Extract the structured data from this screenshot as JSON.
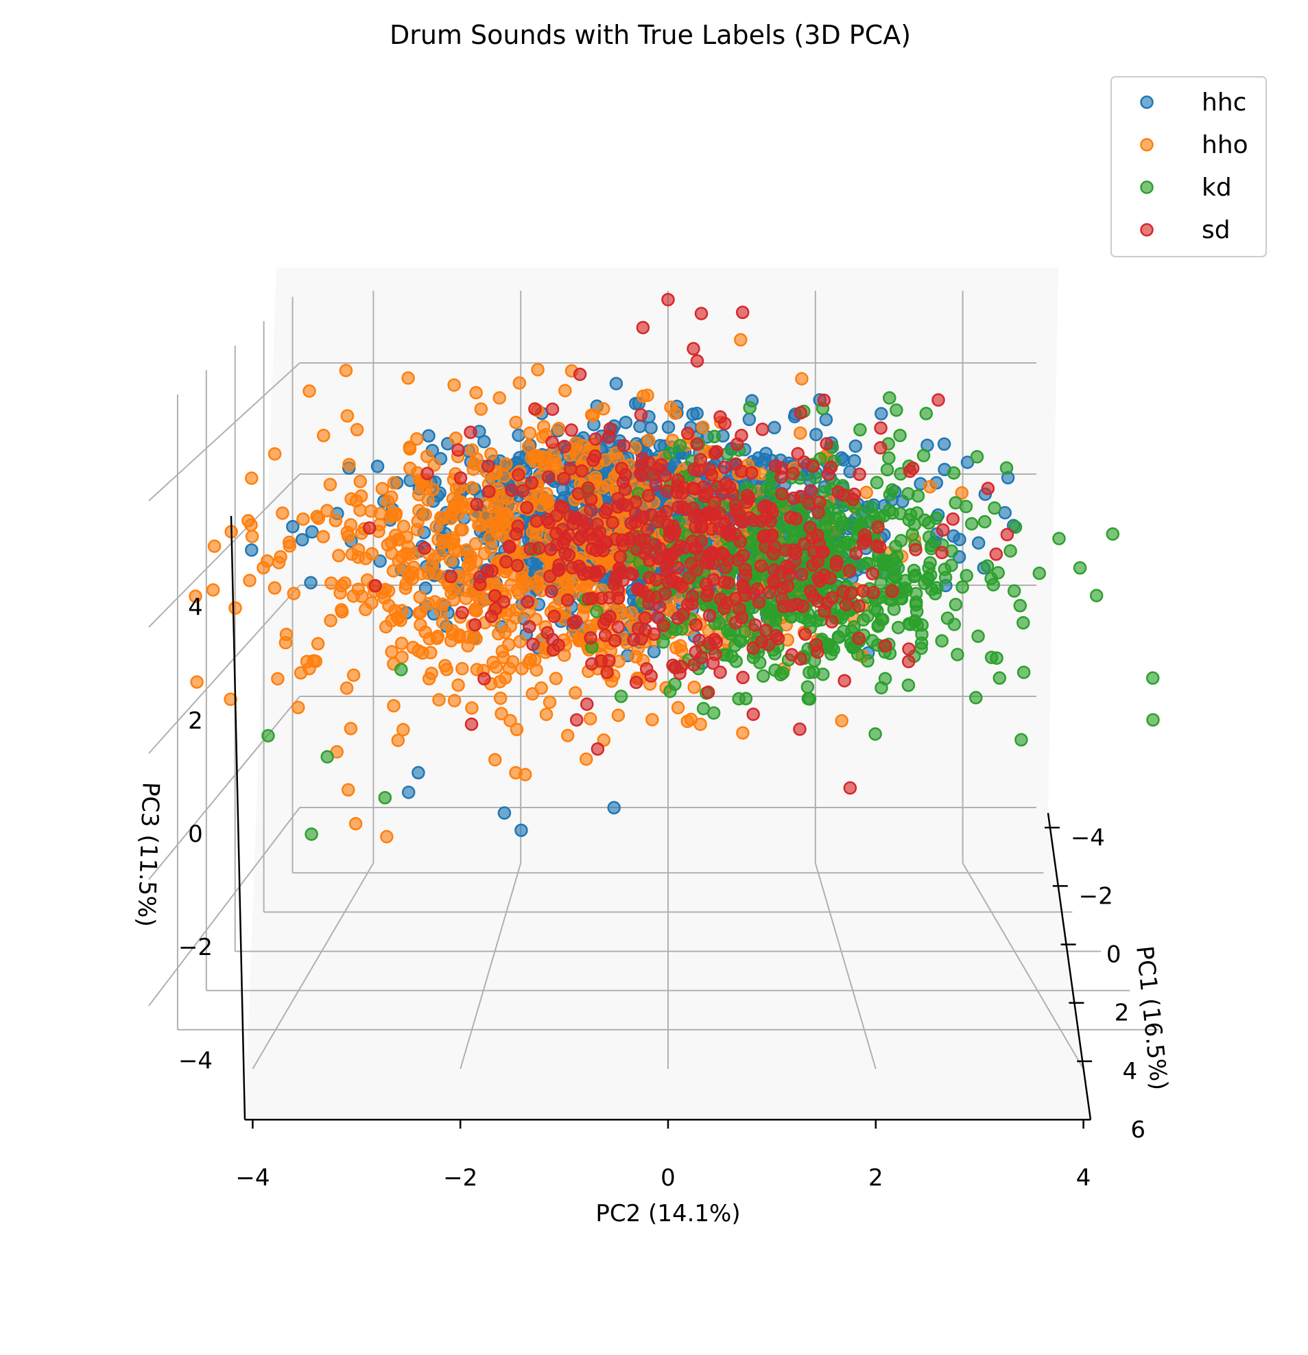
{
  "chart_data": {
    "type": "scatter",
    "projection": "3d",
    "title": "Drum Sounds with True Labels (3D PCA)",
    "xlabel": "PC1 (16.5%)",
    "ylabel": "PC2 (14.1%)",
    "zlabel": "PC3 (11.5%)",
    "xlim": [
      -4.5,
      6
    ],
    "ylim": [
      -5,
      5
    ],
    "zlim": [
      -5,
      5
    ],
    "xticks": [
      "−4",
      "−2",
      "0",
      "2",
      "4",
      "6"
    ],
    "yticks": [
      "−4",
      "−2",
      "0",
      "2",
      "4"
    ],
    "zticks": [
      "−4",
      "−2",
      "0",
      "2",
      "4"
    ],
    "grid": true,
    "legend_position": "top-right",
    "series": [
      {
        "name": "hhc",
        "color": "#1f77b4",
        "center": [
          0.5,
          -0.2,
          2.4
        ],
        "spread": [
          1.1,
          1.3,
          0.7
        ],
        "count": 1300,
        "points": [
          [
            2.8,
            -4.4,
            2.5
          ],
          [
            2.5,
            -3.9,
            2.6
          ],
          [
            1.0,
            -2.9,
            -2.0
          ],
          [
            0.9,
            -2.8,
            -1.7
          ],
          [
            1.5,
            -1.8,
            -2.2
          ],
          [
            1.8,
            -1.6,
            -2.4
          ],
          [
            1.2,
            -0.6,
            -2.2
          ],
          [
            -0.6,
            1.5,
            4.0
          ],
          [
            -0.8,
            1.8,
            4.2
          ],
          [
            1.5,
            3.8,
            2.6
          ],
          [
            0.9,
            3.1,
            3.4
          ],
          [
            1.4,
            3.5,
            3.1
          ]
        ]
      },
      {
        "name": "hho",
        "color": "#ff7f0e",
        "center": [
          0.0,
          -1.3,
          1.7
        ],
        "spread": [
          1.4,
          1.5,
          1.1
        ],
        "count": 900,
        "points": [
          [
            2.3,
            -4.3,
            2.2
          ],
          [
            2.0,
            -3.6,
            2.8
          ],
          [
            -1.5,
            -2.6,
            4.3
          ],
          [
            -1.8,
            -1.6,
            4.5
          ],
          [
            2.8,
            -3.3,
            -2.0
          ],
          [
            2.5,
            -3.0,
            -2.3
          ],
          [
            2.6,
            -3.4,
            -1.5
          ],
          [
            1.8,
            -0.7,
            -0.9
          ],
          [
            1.5,
            -0.9,
            -1.3
          ],
          [
            0.4,
            -0.1,
            1.3
          ],
          [
            0.6,
            -0.3,
            0.8
          ],
          [
            1.3,
            -0.2,
            -0.1
          ]
        ]
      },
      {
        "name": "kd",
        "color": "#2ca02c",
        "center": [
          1.2,
          1.6,
          1.8
        ],
        "spread": [
          1.1,
          0.9,
          0.9
        ],
        "count": 650,
        "points": [
          [
            3.0,
            4.5,
            1.8
          ],
          [
            3.2,
            4.3,
            2.3
          ],
          [
            3.5,
            3.4,
            0.9
          ],
          [
            4.0,
            3.6,
            -0.3
          ],
          [
            4.3,
            4.9,
            0.1
          ],
          [
            3.6,
            5.0,
            0.6
          ],
          [
            2.1,
            4.8,
            2.6
          ],
          [
            -0.5,
            2.6,
            4.3
          ],
          [
            -0.2,
            3.0,
            4.1
          ],
          [
            3.0,
            -4.2,
            -0.5
          ],
          [
            2.8,
            -3.6,
            -0.9
          ],
          [
            3.4,
            -3.7,
            -2.0
          ],
          [
            1.9,
            -2.9,
            0.3
          ],
          [
            2.7,
            -3.0,
            -1.6
          ]
        ]
      },
      {
        "name": "sd",
        "color": "#d62728",
        "center": [
          0.5,
          0.2,
          2.0
        ],
        "spread": [
          1.2,
          1.2,
          1.0
        ],
        "count": 500,
        "points": [
          [
            -1.2,
            0.4,
            5.6
          ],
          [
            -1.4,
            0.0,
            5.8
          ],
          [
            -1.0,
            -0.3,
            5.4
          ],
          [
            -1.3,
            0.9,
            5.6
          ],
          [
            -0.7,
            0.3,
            5.1
          ],
          [
            2.8,
            0.9,
            -0.2
          ],
          [
            3.2,
            1.9,
            -1.3
          ],
          [
            2.4,
            0.8,
            0.3
          ],
          [
            2.6,
            1.4,
            -0.5
          ],
          [
            1.9,
            -1.0,
            1.1
          ]
        ]
      }
    ]
  }
}
